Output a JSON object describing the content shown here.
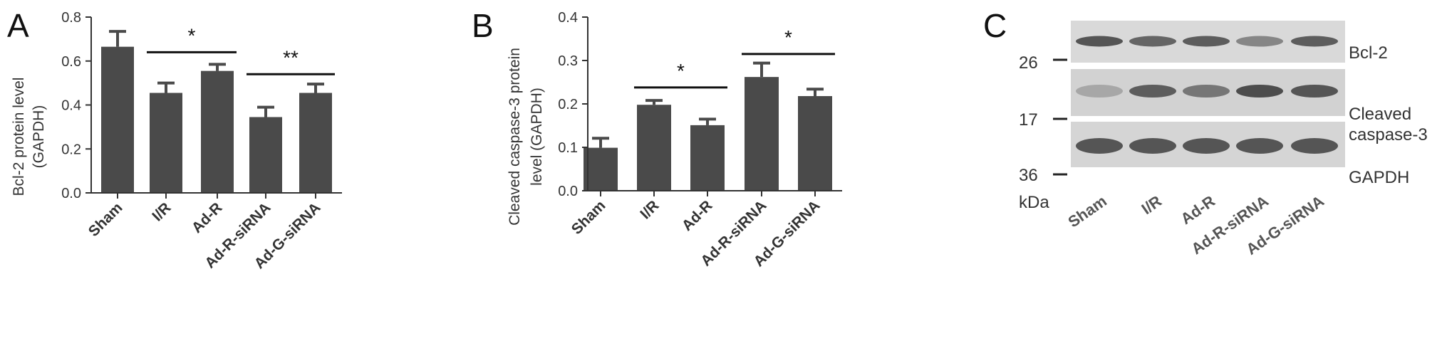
{
  "panel_labels": {
    "a": "A",
    "b": "B",
    "c": "C"
  },
  "colors": {
    "bar": "#4a4a4a",
    "axis": "#333333",
    "text": "#333333",
    "blot_bg": "#d7d7d7",
    "band": "#5a5a5a"
  },
  "chart_data": [
    {
      "type": "bar",
      "panel": "A",
      "categories": [
        "Sham",
        "I/R",
        "Ad-R",
        "Ad-R-siRNA",
        "Ad-G-siRNA"
      ],
      "values": [
        0.665,
        0.455,
        0.555,
        0.345,
        0.455
      ],
      "errors": [
        0.07,
        0.045,
        0.03,
        0.045,
        0.04
      ],
      "ylabel": [
        "Bcl-2 protein level",
        "(GAPDH)"
      ],
      "ylim": [
        0,
        0.8
      ],
      "yticks": [
        "0.0",
        "0.2",
        "0.4",
        "0.6",
        "0.8"
      ],
      "grid": false,
      "significance": [
        {
          "from": 1,
          "to": 2,
          "y": 0.64,
          "label": "*"
        },
        {
          "from": 3,
          "to": 4,
          "y": 0.54,
          "label": "**"
        }
      ]
    },
    {
      "type": "bar",
      "panel": "B",
      "categories": [
        "Sham",
        "I/R",
        "Ad-R",
        "Ad-R-siRNA",
        "Ad-G-siRNA"
      ],
      "values": [
        0.099,
        0.198,
        0.151,
        0.262,
        0.218
      ],
      "errors": [
        0.022,
        0.01,
        0.014,
        0.032,
        0.016
      ],
      "ylabel": [
        "Cleaved caspase-3 protein",
        "level (GAPDH)"
      ],
      "ylim": [
        0,
        0.4
      ],
      "yticks": [
        "0.0",
        "0.1",
        "0.2",
        "0.3",
        "0.4"
      ],
      "grid": false,
      "significance": [
        {
          "from": 1,
          "to": 2,
          "y": 0.238,
          "label": "*"
        },
        {
          "from": 3,
          "to": 4,
          "y": 0.315,
          "label": "*"
        }
      ]
    }
  ],
  "blot": {
    "rows": [
      {
        "marker": "26",
        "label": [
          "Bcl-2"
        ],
        "intensities": [
          0.85,
          0.75,
          0.8,
          0.55,
          0.8
        ]
      },
      {
        "marker": "17",
        "label": [
          "Cleaved",
          "caspase-3"
        ],
        "intensities": [
          0.35,
          0.8,
          0.65,
          0.9,
          0.85
        ]
      },
      {
        "marker": "36",
        "label": [
          "GAPDH"
        ],
        "intensities": [
          0.85,
          0.85,
          0.85,
          0.85,
          0.85
        ]
      }
    ],
    "unit": "kDa",
    "lanes": [
      "Sham",
      "I/R",
      "Ad-R",
      "Ad-R-siRNA",
      "Ad-G-siRNA"
    ]
  }
}
